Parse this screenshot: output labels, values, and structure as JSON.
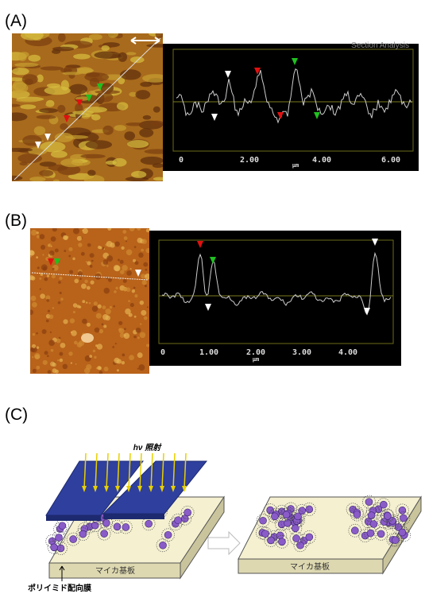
{
  "panels": [
    {
      "label": "(A)",
      "profile": {
        "title": "Section Analysis",
        "xticks": [
          "0",
          "2.00",
          "4.00",
          "6.00"
        ],
        "xunit": "μm"
      }
    },
    {
      "label": "(B)",
      "profile": {
        "xticks": [
          "0",
          "1.00",
          "2.00",
          "3.00",
          "4.00"
        ],
        "xunit": "μm"
      }
    },
    {
      "label": "(C)",
      "diagram": {
        "light": "hν 照射",
        "substrate_left": "マイカ基板",
        "substrate_right": "マイカ基板",
        "film": "ポリイミド配向膜"
      }
    }
  ]
}
